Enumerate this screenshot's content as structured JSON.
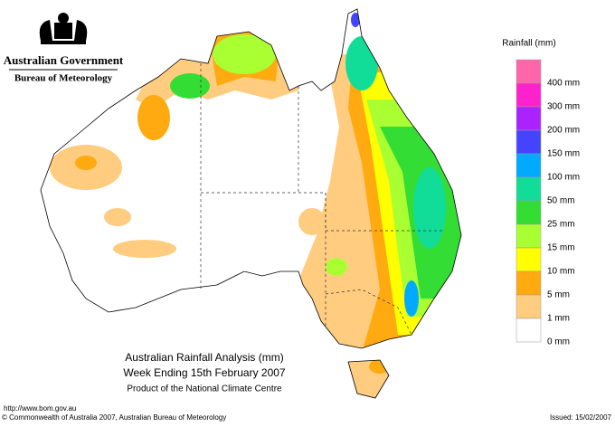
{
  "header": {
    "government": "Australian Government",
    "bureau": "Bureau of Meteorology"
  },
  "legend": {
    "title": "Rainfall (mm)",
    "items": [
      {
        "label": "400 mm",
        "color": "#ff66aa"
      },
      {
        "label": "300 mm",
        "color": "#ff22cc"
      },
      {
        "label": "200 mm",
        "color": "#aa22ff"
      },
      {
        "label": "150 mm",
        "color": "#4444ff"
      },
      {
        "label": "100 mm",
        "color": "#00aaff"
      },
      {
        "label": "50 mm",
        "color": "#11dd99"
      },
      {
        "label": "25 mm",
        "color": "#33dd33"
      },
      {
        "label": "15 mm",
        "color": "#aaff33"
      },
      {
        "label": "10 mm",
        "color": "#ffff00"
      },
      {
        "label": "5 mm",
        "color": "#ffaa11"
      },
      {
        "label": "1 mm",
        "color": "#ffcc80"
      },
      {
        "label": "0 mm",
        "color": "#ffffff"
      }
    ]
  },
  "map": {
    "title": "Australian Rainfall Analysis (mm)",
    "subtitle": "Week Ending 15th February 2007",
    "product": "Product of the National Climate Centre"
  },
  "footer": {
    "url": "http://www.bom.gov.au",
    "copyright": "© Commonwealth of Australia 2007, Australian Bureau of Meteorology",
    "issued": "Issued: 15/02/2007"
  }
}
